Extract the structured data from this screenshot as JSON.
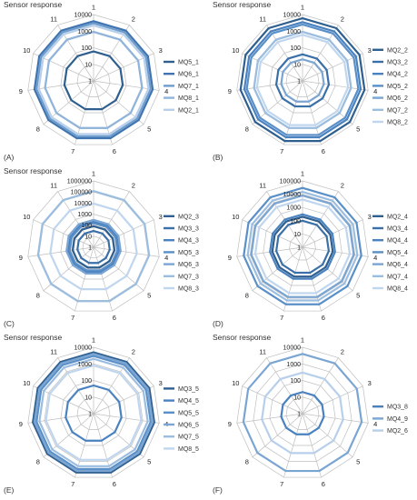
{
  "chart_data": [
    {
      "type": "radar",
      "panel_label": "(A)",
      "title": "Sensor response",
      "categories": [
        "1",
        "2",
        "3",
        "4",
        "5",
        "6",
        "7",
        "8",
        "9",
        "10",
        "11"
      ],
      "scale": "log",
      "rlim": [
        1,
        10000
      ],
      "tick_labels": [
        "1",
        "10",
        "100",
        "1000",
        "10000"
      ],
      "legend_placement": "right",
      "grid": true,
      "series": [
        {
          "name": "MQ5_1",
          "color": "#2f5f8f",
          "values": [
            60,
            60,
            60,
            60,
            60,
            60,
            60,
            60,
            60,
            60,
            60
          ]
        },
        {
          "name": "MQ6_1",
          "color": "#3f74b0",
          "values": [
            4000,
            4000,
            4000,
            4000,
            4000,
            4000,
            4000,
            4000,
            4000,
            4000,
            4000
          ]
        },
        {
          "name": "MQ7_1",
          "color": "#6d9ccd",
          "values": [
            3000,
            3000,
            3000,
            3000,
            3000,
            3000,
            3000,
            3000,
            3000,
            3000,
            3000
          ]
        },
        {
          "name": "MQ8_1",
          "color": "#8fb4dc",
          "values": [
            900,
            900,
            900,
            900,
            900,
            900,
            900,
            900,
            900,
            900,
            900
          ]
        },
        {
          "name": "MQ2_1",
          "color": "#b7cfea",
          "values": [
            2200,
            2200,
            2200,
            2200,
            2200,
            2200,
            2200,
            2200,
            2200,
            2200,
            2200
          ]
        }
      ]
    },
    {
      "type": "radar",
      "panel_label": "(B)",
      "title": "Sensor response",
      "categories": [
        "1",
        "2",
        "3",
        "4",
        "5",
        "6",
        "7",
        "8",
        "9",
        "10",
        "11"
      ],
      "scale": "log",
      "rlim": [
        1,
        10000
      ],
      "tick_labels": [
        "1",
        "10",
        "100",
        "1000",
        "10000"
      ],
      "legend_placement": "right",
      "grid": true,
      "series": [
        {
          "name": "MQ2_2",
          "color": "#2f5f8f",
          "values": [
            6000,
            6000,
            6000,
            6000,
            6000,
            6000,
            6000,
            6000,
            6000,
            6000,
            6000
          ]
        },
        {
          "name": "MQ3_2",
          "color": "#3b6fa8",
          "values": [
            40,
            40,
            40,
            40,
            40,
            40,
            40,
            40,
            40,
            40,
            40
          ]
        },
        {
          "name": "MQ4_2",
          "color": "#4a82c0",
          "values": [
            3500,
            3500,
            3500,
            3500,
            3500,
            3500,
            3500,
            3500,
            3500,
            3500,
            3500
          ]
        },
        {
          "name": "MQ5_2",
          "color": "#5a8fc8",
          "values": [
            2500,
            2500,
            2500,
            2500,
            2500,
            2500,
            2500,
            2500,
            2500,
            2500,
            2500
          ]
        },
        {
          "name": "MQ6_2",
          "color": "#7aa5d3",
          "values": [
            20,
            20,
            20,
            20,
            20,
            20,
            20,
            20,
            20,
            20,
            20
          ]
        },
        {
          "name": "MQ7_2",
          "color": "#9bbde0",
          "values": [
            900,
            900,
            900,
            900,
            900,
            900,
            900,
            900,
            900,
            900,
            900
          ]
        },
        {
          "name": "MQ8_2",
          "color": "#c0d6ee",
          "values": [
            600,
            600,
            600,
            600,
            600,
            600,
            600,
            600,
            600,
            600,
            600
          ]
        }
      ]
    },
    {
      "type": "radar",
      "panel_label": "(C)",
      "title": "Sensor response",
      "categories": [
        "1",
        "2",
        "3",
        "4",
        "5",
        "6",
        "7",
        "8",
        "9",
        "10",
        "11"
      ],
      "scale": "log",
      "rlim": [
        1,
        1000000
      ],
      "tick_labels": [
        "1",
        "10",
        "100",
        "1000",
        "10000",
        "100000",
        "1000000"
      ],
      "legend_placement": "right",
      "grid": true,
      "series": [
        {
          "name": "MQ2_3",
          "color": "#2f5f8f",
          "values": [
            80,
            80,
            80,
            80,
            80,
            80,
            80,
            80,
            80,
            80,
            80
          ]
        },
        {
          "name": "MQ3_3",
          "color": "#3b6fa8",
          "values": [
            30,
            30,
            30,
            30,
            30,
            30,
            30,
            30,
            30,
            30,
            30
          ]
        },
        {
          "name": "MQ4_3",
          "color": "#4a82c0",
          "values": [
            200,
            200,
            200,
            200,
            200,
            200,
            200,
            200,
            200,
            200,
            200
          ]
        },
        {
          "name": "MQ5_3",
          "color": "#5a8fc8",
          "values": [
            150,
            150,
            150,
            150,
            150,
            150,
            150,
            150,
            150,
            150,
            150
          ]
        },
        {
          "name": "MQ6_3",
          "color": "#7aa5d3",
          "values": [
            300,
            300,
            300,
            300,
            300,
            300,
            300,
            300,
            300,
            300,
            300
          ]
        },
        {
          "name": "MQ7_3",
          "color": "#9bbde0",
          "values": [
            120000,
            120000,
            120000,
            120000,
            120000,
            120000,
            120000,
            120000,
            120000,
            120000,
            120000
          ]
        },
        {
          "name": "MQ8_3",
          "color": "#c0d6ee",
          "values": [
            9000,
            9000,
            9000,
            9000,
            9000,
            9000,
            9000,
            9000,
            9000,
            9000,
            9000
          ]
        }
      ]
    },
    {
      "type": "radar",
      "panel_label": "(D)",
      "title": "",
      "categories": [
        "1",
        "2",
        "3",
        "4",
        "5",
        "6",
        "7",
        "8",
        "9",
        "10",
        "11"
      ],
      "scale": "log",
      "rlim": [
        1,
        100000
      ],
      "tick_labels": [
        "1",
        "10",
        "100",
        "1000",
        "10000",
        "100000"
      ],
      "legend_placement": "right",
      "grid": true,
      "series": [
        {
          "name": "MQ2_4",
          "color": "#2f5f8f",
          "values": [
            200,
            200,
            200,
            200,
            200,
            200,
            200,
            200,
            200,
            200,
            200
          ]
        },
        {
          "name": "MQ3_4",
          "color": "#3b6fa8",
          "values": [
            100,
            100,
            100,
            100,
            100,
            100,
            100,
            100,
            100,
            100,
            100
          ]
        },
        {
          "name": "MQ4_4",
          "color": "#4a82c0",
          "values": [
            300,
            300,
            300,
            300,
            300,
            300,
            300,
            300,
            300,
            300,
            300
          ]
        },
        {
          "name": "MQ5_4",
          "color": "#5a8fc8",
          "values": [
            30000,
            30000,
            30000,
            30000,
            30000,
            30000,
            30000,
            30000,
            30000,
            30000,
            30000
          ]
        },
        {
          "name": "MQ6_4",
          "color": "#7aa5d3",
          "values": [
            8000,
            8000,
            8000,
            8000,
            8000,
            8000,
            8000,
            8000,
            8000,
            8000,
            8000
          ]
        },
        {
          "name": "MQ7_4",
          "color": "#9bbde0",
          "values": [
            15000,
            15000,
            15000,
            15000,
            15000,
            15000,
            15000,
            15000,
            15000,
            15000,
            15000
          ]
        },
        {
          "name": "MQ8_4",
          "color": "#c0d6ee",
          "values": [
            4000,
            4000,
            4000,
            4000,
            4000,
            4000,
            4000,
            4000,
            4000,
            4000,
            4000
          ]
        }
      ]
    },
    {
      "type": "radar",
      "panel_label": "(E)",
      "title": "Sensor response",
      "categories": [
        "1",
        "2",
        "3",
        "4",
        "5",
        "6",
        "7",
        "8",
        "9",
        "10",
        "11"
      ],
      "scale": "log",
      "rlim": [
        1,
        10000
      ],
      "tick_labels": [
        "1",
        "10",
        "100",
        "1000",
        "10000"
      ],
      "legend_placement": "right",
      "grid": true,
      "series": [
        {
          "name": "MQ3_5",
          "color": "#2f5f8f",
          "values": [
            5000,
            5000,
            5000,
            5000,
            5000,
            5000,
            5000,
            5000,
            5000,
            5000,
            5000
          ]
        },
        {
          "name": "MQ4_5",
          "color": "#4a82c0",
          "values": [
            50,
            50,
            50,
            50,
            50,
            50,
            50,
            50,
            50,
            50,
            50
          ]
        },
        {
          "name": "MQ5_5",
          "color": "#5a8fc8",
          "values": [
            3000,
            3000,
            3000,
            3000,
            3000,
            3000,
            3000,
            3000,
            3000,
            3000,
            3000
          ]
        },
        {
          "name": "MQ6_5",
          "color": "#7aa5d3",
          "values": [
            4000,
            4000,
            4000,
            4000,
            4000,
            4000,
            4000,
            4000,
            4000,
            4000,
            4000
          ]
        },
        {
          "name": "MQ7_5",
          "color": "#9bbde0",
          "values": [
            2000,
            2000,
            2000,
            2000,
            2000,
            2000,
            2000,
            2000,
            2000,
            2000,
            2000
          ]
        },
        {
          "name": "MQ8_5",
          "color": "#c0d6ee",
          "values": [
            800,
            800,
            800,
            800,
            800,
            800,
            800,
            800,
            800,
            800,
            800
          ]
        }
      ]
    },
    {
      "type": "radar",
      "panel_label": "(F)",
      "title": "Sensor response",
      "categories": [
        "1",
        "2",
        "3",
        "4",
        "5",
        "6",
        "7",
        "8",
        "9",
        "10",
        "11"
      ],
      "scale": "log",
      "rlim": [
        1,
        10000
      ],
      "tick_labels": [
        "1",
        "10",
        "100",
        "1000",
        "10000"
      ],
      "legend_placement": "right",
      "grid": true,
      "series": [
        {
          "name": "MQ3_8",
          "color": "#4a82c0",
          "values": [
            20,
            20,
            20,
            20,
            20,
            20,
            20,
            20,
            20,
            20,
            20
          ]
        },
        {
          "name": "MQ4_9",
          "color": "#7aa5d3",
          "values": [
            4000,
            4000,
            4000,
            4000,
            4000,
            4000,
            4000,
            4000,
            4000,
            4000,
            4000
          ]
        },
        {
          "name": "MQ2_6",
          "color": "#b7cfea",
          "values": [
            300,
            300,
            300,
            300,
            300,
            300,
            300,
            300,
            300,
            300,
            300
          ]
        }
      ]
    }
  ]
}
